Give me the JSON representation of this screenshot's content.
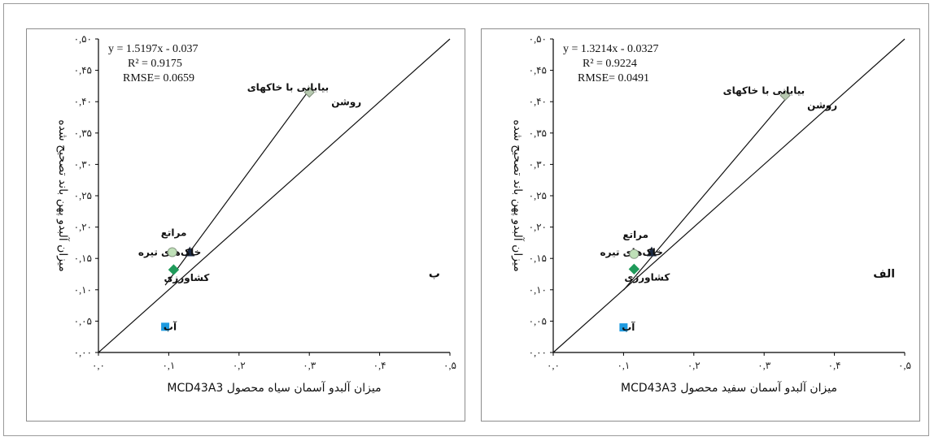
{
  "colors": {
    "water": "#1e9be0",
    "agriculture": "#1f9a5a",
    "dark_soil": "#1b2a44",
    "rangeland": "#bfe0b8",
    "bright_soil": "#b7c9b0"
  },
  "chart_data": [
    {
      "type": "scatter",
      "panel_letter": "ب",
      "xlabel": "میزان آلبدو آسمان سیاه محصول MCD43A3",
      "ylabel": "میزان آلبدو پهن باند تصحیح شده",
      "xlim": [
        0,
        0.5
      ],
      "ylim": [
        0,
        0.5
      ],
      "x_ticks": [
        "۰,۰",
        "۰,۱",
        "۰,۲",
        "۰,۳",
        "۰,۴",
        "۰,۵"
      ],
      "y_ticks": [
        "۰,۰۰",
        "۰,۰۵",
        "۰,۱۰",
        "۰,۱۵",
        "۰,۲۰",
        "۰,۲۵",
        "۰,۳۰",
        "۰,۳۵",
        "۰,۴۰",
        "۰,۴۵",
        "۰,۵۰"
      ],
      "equation": "y = 1.5197x - 0.037",
      "r2": "R² = 0.9175",
      "rmse": "RMSE= 0.0659",
      "fit": {
        "slope": 1.5197,
        "intercept": -0.037,
        "x_range": [
          0.095,
          0.3
        ]
      },
      "points": [
        {
          "name": "بیابانی با خاکهای روشن",
          "label_lines": [
            "بیابانی با خاکهای",
            "روشن"
          ],
          "x": 0.3,
          "y": 0.415,
          "marker": "diamond",
          "color_key": "bright_soil",
          "label_pos": "right-top"
        },
        {
          "name": "خاک‌های تیره",
          "label_lines": [
            "خاک‌های تیره"
          ],
          "x": 0.13,
          "y": 0.16,
          "marker": "triangle",
          "color_key": "dark_soil",
          "label_pos": "right"
        },
        {
          "name": "مراتع",
          "label_lines": [
            "مراتع"
          ],
          "x": 0.105,
          "y": 0.16,
          "marker": "circle",
          "color_key": "rangeland",
          "label_pos": "left-top"
        },
        {
          "name": "کشاورزی",
          "label_lines": [
            "کشاورزی"
          ],
          "x": 0.107,
          "y": 0.132,
          "marker": "diamond",
          "color_key": "agriculture",
          "label_pos": "left-bottom"
        },
        {
          "name": "آب",
          "label_lines": [
            "آب"
          ],
          "x": 0.095,
          "y": 0.041,
          "marker": "square",
          "color_key": "water",
          "label_pos": "right"
        }
      ]
    },
    {
      "type": "scatter",
      "panel_letter": "الف",
      "xlabel": "میزان آلبدو آسمان سفید محصول MCD43A3",
      "ylabel": "میزان آلبدو پهن باند تصحیح شده",
      "xlim": [
        0,
        0.5
      ],
      "ylim": [
        0,
        0.5
      ],
      "x_ticks": [
        "۰,۰",
        "۰,۱",
        "۰,۲",
        "۰,۳",
        "۰,۴",
        "۰,۵"
      ],
      "y_ticks": [
        "۰,۰۰",
        "۰,۰۵",
        "۰,۱۰",
        "۰,۱۵",
        "۰,۲۰",
        "۰,۲۵",
        "۰,۳۰",
        "۰,۳۵",
        "۰,۴۰",
        "۰,۴۵",
        "۰,۵۰"
      ],
      "equation": "y = 1.3214x - 0.0327",
      "r2": "R² = 0.9224",
      "rmse": "RMSE= 0.0491",
      "fit": {
        "slope": 1.3214,
        "intercept": -0.0327,
        "x_range": [
          0.1,
          0.33
        ]
      },
      "points": [
        {
          "name": "بیابانی با خاکهای روشن",
          "label_lines": [
            "بیابانی با خاکهای",
            "روشن"
          ],
          "x": 0.33,
          "y": 0.41,
          "marker": "diamond",
          "color_key": "bright_soil",
          "label_pos": "right-top"
        },
        {
          "name": "خاک‌های تیره",
          "label_lines": [
            "خاک‌های تیره"
          ],
          "x": 0.14,
          "y": 0.16,
          "marker": "triangle",
          "color_key": "dark_soil",
          "label_pos": "right"
        },
        {
          "name": "مراتع",
          "label_lines": [
            "مراتع"
          ],
          "x": 0.115,
          "y": 0.157,
          "marker": "circle",
          "color_key": "rangeland",
          "label_pos": "left-top"
        },
        {
          "name": "کشاورزی",
          "label_lines": [
            "کشاورزی"
          ],
          "x": 0.115,
          "y": 0.133,
          "marker": "diamond",
          "color_key": "agriculture",
          "label_pos": "left-bottom"
        },
        {
          "name": "آب",
          "label_lines": [
            "آب"
          ],
          "x": 0.1,
          "y": 0.04,
          "marker": "square",
          "color_key": "water",
          "label_pos": "right"
        }
      ]
    }
  ]
}
